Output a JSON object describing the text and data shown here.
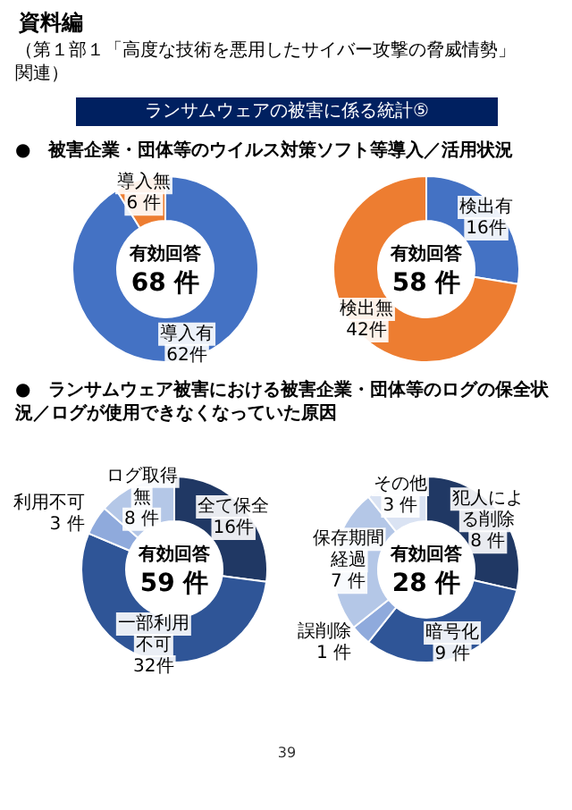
{
  "chart_data": [
    {
      "type": "donut",
      "title": "●　被害企業・団体等のウイルス対策ソフト等導入／活用状況",
      "categories": [
        "導入有",
        "導入無"
      ],
      "values": [
        62,
        6
      ],
      "colors": [
        "#4472c4",
        "#ed7d31"
      ],
      "value_labels": [
        "62件",
        "6 件"
      ],
      "annotations": [
        "資料編",
        "（第１部１「高度な技術を悪用したサイバー攻撃の脅威情勢」関連）",
        "ランサムウェアの被害に係る統計⑤",
        "有効回答",
        "68 件"
      ]
    },
    {
      "type": "donut",
      "categories": [
        "検出有",
        "検出無"
      ],
      "values": [
        16,
        42
      ],
      "colors": [
        "#4472c4",
        "#ed7d31"
      ],
      "value_labels": [
        "16件",
        "42件"
      ],
      "annotations": [
        "有効回答",
        "58 件"
      ]
    },
    {
      "type": "donut",
      "title": "●　ランサムウェア被害における被害企業・団体等のログの保全状況／ログが使用できなくなっていた原因",
      "categories": [
        "全て保全",
        "一部利用不可",
        "利用不可",
        "ログ取得無"
      ],
      "values": [
        16,
        32,
        3,
        8
      ],
      "colors": [
        "#203864",
        "#2f5597",
        "#8faadc",
        "#b4c7e7"
      ],
      "value_labels": [
        "16件",
        "32件",
        "3 件",
        "8 件"
      ],
      "annotations": [
        "有効回答",
        "59 件"
      ]
    },
    {
      "type": "donut",
      "categories": [
        "犯人による削除",
        "暗号化",
        "誤削除",
        "保存期間経過",
        "その他"
      ],
      "values": [
        8,
        9,
        1,
        7,
        3
      ],
      "colors": [
        "#203864",
        "#2f5597",
        "#8faadc",
        "#b4c7e7",
        "#dae3f3"
      ],
      "value_labels": [
        "8 件",
        "9 件",
        "1 件",
        "7 件",
        "3 件"
      ],
      "annotations": [
        "39",
        "有効回答",
        "28 件"
      ]
    }
  ]
}
